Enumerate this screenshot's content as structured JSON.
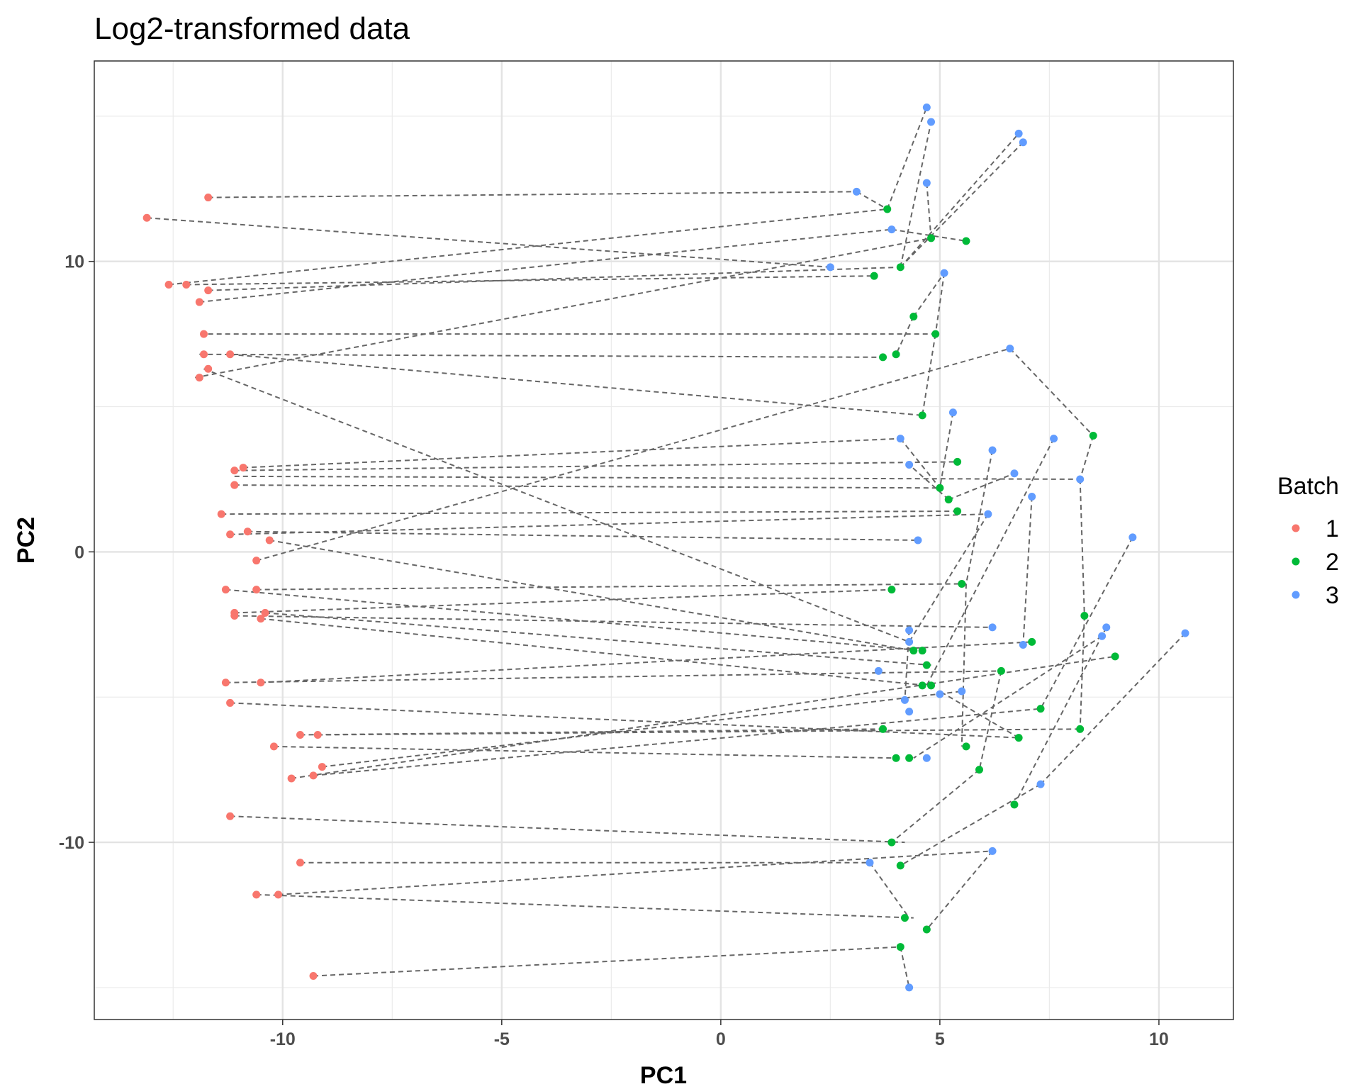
{
  "chart_data": {
    "type": "scatter",
    "title": "Log2-transformed data",
    "xlabel": "PC1",
    "ylabel": "PC2",
    "xlim": [
      -14.3,
      11.7
    ],
    "ylim": [
      -16.1,
      16.9
    ],
    "x_ticks": [
      -10,
      -5,
      0,
      5,
      10
    ],
    "y_ticks": [
      -10,
      0,
      10
    ],
    "x_tick_labels": [
      "-10",
      "-5",
      "0",
      "5",
      "10"
    ],
    "y_tick_labels": [
      "-10",
      "0",
      "10"
    ],
    "grid": true,
    "legend": {
      "title": "Batch",
      "position": "right",
      "entries": [
        "1",
        "2",
        "3"
      ]
    },
    "colors": {
      "1": "#f8766d",
      "2": "#00ba38",
      "3": "#619cff"
    },
    "line_style": "dashed",
    "line_color": "#666666",
    "series": [
      {
        "name": "1",
        "x": [
          -13.1,
          -11.7,
          -12.6,
          -12.2,
          -11.7,
          -11.9,
          -11.8,
          -11.8,
          -11.2,
          -11.7,
          -11.9,
          -11.1,
          -10.9,
          -11.1,
          -11.1,
          -11.4,
          -11.2,
          -10.8,
          -10.3,
          -10.6,
          -11.3,
          -10.6,
          -11.1,
          -11.1,
          -10.4,
          -10.5,
          -11.3,
          -10.5,
          -11.2,
          -10.2,
          -9.6,
          -9.2,
          -9.1,
          -9.3,
          -9.8,
          -11.2,
          -9.6,
          -10.6,
          -10.1,
          -9.3
        ],
        "y": [
          11.5,
          12.2,
          9.2,
          9.2,
          9.0,
          8.6,
          7.5,
          6.8,
          6.8,
          6.3,
          6.0,
          2.8,
          2.9,
          2.3,
          2.3,
          1.3,
          0.6,
          0.7,
          0.4,
          -0.3,
          -1.3,
          -1.3,
          -2.1,
          -2.2,
          -2.1,
          -2.3,
          -4.5,
          -4.5,
          -5.2,
          -6.7,
          -6.3,
          -6.3,
          -7.4,
          -7.7,
          -7.8,
          -9.1,
          -10.7,
          -11.8,
          -11.8,
          -14.6
        ]
      },
      {
        "name": "2",
        "x": [
          3.8,
          4.8,
          5.6,
          4.1,
          3.5,
          4.4,
          4.9,
          3.7,
          4.0,
          4.6,
          8.5,
          5.4,
          5.0,
          5.2,
          5.4,
          5.5,
          3.9,
          8.3,
          7.1,
          9.0,
          4.6,
          4.4,
          4.7,
          4.8,
          6.4,
          4.6,
          7.3,
          3.7,
          6.8,
          8.2,
          5.6,
          4.0,
          4.3,
          5.9,
          6.7,
          3.9,
          4.1,
          4.2,
          4.7,
          4.1
        ],
        "y": [
          11.8,
          10.8,
          10.7,
          9.8,
          9.5,
          8.1,
          7.5,
          6.7,
          6.8,
          4.7,
          4.0,
          3.1,
          2.2,
          1.8,
          1.4,
          -1.1,
          -1.3,
          -2.2,
          -3.1,
          -3.6,
          -3.4,
          -3.4,
          -3.9,
          -4.6,
          -4.1,
          -4.6,
          -5.4,
          -6.1,
          -6.4,
          -6.1,
          -6.7,
          -7.1,
          -7.1,
          -7.5,
          -8.7,
          -10.0,
          -10.8,
          -12.6,
          -13.0,
          -13.6
        ]
      },
      {
        "name": "3",
        "x": [
          4.7,
          4.8,
          6.8,
          6.9,
          4.7,
          3.1,
          3.9,
          2.5,
          5.1,
          6.6,
          5.3,
          4.1,
          7.6,
          6.2,
          4.3,
          6.7,
          8.2,
          7.1,
          6.1,
          9.4,
          4.5,
          6.2,
          8.8,
          4.3,
          8.7,
          6.9,
          4.3,
          3.6,
          5.0,
          5.5,
          4.2,
          4.3,
          4.7,
          7.3,
          10.6,
          6.2,
          3.4,
          4.3
        ],
        "y": [
          15.3,
          14.8,
          14.4,
          14.1,
          12.7,
          12.4,
          11.1,
          9.8,
          9.6,
          7.0,
          4.8,
          3.9,
          3.9,
          3.5,
          3.0,
          2.7,
          2.5,
          1.9,
          1.3,
          0.5,
          0.4,
          -2.6,
          -2.6,
          -2.7,
          -2.9,
          -3.2,
          -3.1,
          -4.1,
          -4.9,
          -4.8,
          -5.1,
          -5.5,
          -7.1,
          -8.0,
          -2.8,
          -10.3,
          -10.7,
          -15.0
        ]
      }
    ],
    "connections": [
      [
        [
          -11.7,
          12.2
        ],
        [
          3.1,
          12.4
        ]
      ],
      [
        [
          -13.1,
          11.5
        ],
        [
          2.5,
          9.8
        ]
      ],
      [
        [
          -12.6,
          9.2
        ],
        [
          3.8,
          11.8
        ]
      ],
      [
        [
          -12.2,
          9.2
        ],
        [
          3.5,
          9.5
        ]
      ],
      [
        [
          -11.7,
          9.0
        ],
        [
          4.1,
          9.8
        ]
      ],
      [
        [
          -11.9,
          8.6
        ],
        [
          3.9,
          11.1
        ]
      ],
      [
        [
          -11.7,
          7.5
        ],
        [
          4.9,
          7.5
        ]
      ],
      [
        [
          -11.9,
          6.8
        ],
        [
          3.7,
          6.7
        ]
      ],
      [
        [
          -11.2,
          6.8
        ],
        [
          4.6,
          4.7
        ]
      ],
      [
        [
          -11.8,
          6.3
        ],
        [
          4.3,
          -3.1
        ]
      ],
      [
        [
          -12.0,
          6.0
        ],
        [
          4.8,
          10.8
        ]
      ],
      [
        [
          -11.1,
          2.8
        ],
        [
          5.4,
          3.1
        ]
      ],
      [
        [
          -10.9,
          2.9
        ],
        [
          4.1,
          3.9
        ]
      ],
      [
        [
          -11.1,
          2.3
        ],
        [
          5.0,
          2.2
        ]
      ],
      [
        [
          -11.1,
          2.6
        ],
        [
          8.2,
          2.5
        ]
      ],
      [
        [
          -11.4,
          1.3
        ],
        [
          5.4,
          1.4
        ]
      ],
      [
        [
          -11.2,
          0.6
        ],
        [
          6.1,
          1.3
        ]
      ],
      [
        [
          -10.8,
          0.7
        ],
        [
          4.5,
          0.4
        ]
      ],
      [
        [
          -10.3,
          0.4
        ],
        [
          4.4,
          -3.4
        ]
      ],
      [
        [
          -10.6,
          -0.3
        ],
        [
          6.6,
          7.0
        ]
      ],
      [
        [
          -11.3,
          -1.3
        ],
        [
          4.6,
          -3.4
        ]
      ],
      [
        [
          -10.6,
          -1.3
        ],
        [
          5.6,
          -1.1
        ]
      ],
      [
        [
          -11.1,
          -2.1
        ],
        [
          3.9,
          -1.3
        ]
      ],
      [
        [
          -11.1,
          -2.2
        ],
        [
          6.2,
          -2.6
        ]
      ],
      [
        [
          -10.4,
          -2.1
        ],
        [
          4.8,
          -3.9
        ]
      ],
      [
        [
          -10.5,
          -2.3
        ],
        [
          4.7,
          -4.6
        ]
      ],
      [
        [
          -11.3,
          -4.5
        ],
        [
          6.4,
          -4.1
        ]
      ],
      [
        [
          -10.5,
          -4.5
        ],
        [
          7.1,
          -3.1
        ]
      ],
      [
        [
          -11.2,
          -5.2
        ],
        [
          6.8,
          -6.4
        ]
      ],
      [
        [
          -9.6,
          -6.3
        ],
        [
          3.7,
          -6.1
        ]
      ],
      [
        [
          -9.2,
          -6.3
        ],
        [
          8.2,
          -6.1
        ]
      ],
      [
        [
          -10.2,
          -6.7
        ],
        [
          4.0,
          -7.1
        ]
      ],
      [
        [
          -9.1,
          -7.4
        ],
        [
          5.5,
          -4.8
        ]
      ],
      [
        [
          -9.3,
          -7.7
        ],
        [
          7.3,
          -5.4
        ]
      ],
      [
        [
          -9.8,
          -7.8
        ],
        [
          9.0,
          -3.6
        ]
      ],
      [
        [
          -11.2,
          -9.1
        ],
        [
          4.2,
          -10.0
        ]
      ],
      [
        [
          -9.6,
          -10.7
        ],
        [
          3.4,
          -10.7
        ]
      ],
      [
        [
          -10.6,
          -11.8
        ],
        [
          4.4,
          -12.6
        ]
      ],
      [
        [
          -10.1,
          -11.8
        ],
        [
          6.2,
          -10.3
        ]
      ],
      [
        [
          -9.3,
          -14.6
        ],
        [
          4.1,
          -13.6
        ]
      ],
      [
        [
          3.1,
          12.4
        ],
        [
          3.8,
          11.8
        ]
      ],
      [
        [
          3.8,
          11.8
        ],
        [
          4.7,
          15.3
        ]
      ],
      [
        [
          4.1,
          9.8
        ],
        [
          4.8,
          14.8
        ]
      ],
      [
        [
          4.1,
          9.8
        ],
        [
          6.8,
          14.4
        ]
      ],
      [
        [
          4.1,
          9.8
        ],
        [
          6.9,
          14.1
        ]
      ],
      [
        [
          4.7,
          12.7
        ],
        [
          4.8,
          10.8
        ]
      ],
      [
        [
          3.9,
          11.1
        ],
        [
          5.6,
          10.7
        ]
      ],
      [
        [
          4.4,
          8.1
        ],
        [
          5.1,
          9.6
        ]
      ],
      [
        [
          4.4,
          8.1
        ],
        [
          4.0,
          6.8
        ]
      ],
      [
        [
          5.1,
          9.6
        ],
        [
          4.9,
          7.5
        ]
      ],
      [
        [
          4.9,
          7.5
        ],
        [
          4.6,
          4.7
        ]
      ],
      [
        [
          6.6,
          7.0
        ],
        [
          8.5,
          4.0
        ]
      ],
      [
        [
          8.5,
          4.0
        ],
        [
          8.2,
          2.5
        ]
      ],
      [
        [
          8.2,
          2.5
        ],
        [
          8.3,
          -2.2
        ]
      ],
      [
        [
          8.3,
          -2.2
        ],
        [
          8.2,
          -6.1
        ]
      ],
      [
        [
          5.3,
          4.8
        ],
        [
          5.0,
          2.2
        ]
      ],
      [
        [
          4.1,
          3.9
        ],
        [
          5.0,
          2.2
        ]
      ],
      [
        [
          5.2,
          1.8
        ],
        [
          4.3,
          3.0
        ]
      ],
      [
        [
          5.2,
          1.8
        ],
        [
          6.7,
          2.7
        ]
      ],
      [
        [
          6.2,
          3.5
        ],
        [
          5.6,
          -1.1
        ]
      ],
      [
        [
          7.6,
          3.9
        ],
        [
          4.7,
          -4.6
        ]
      ],
      [
        [
          7.1,
          1.9
        ],
        [
          6.9,
          -3.2
        ]
      ],
      [
        [
          6.1,
          1.3
        ],
        [
          4.3,
          -3.1
        ]
      ],
      [
        [
          9.4,
          0.5
        ],
        [
          7.3,
          -5.4
        ]
      ],
      [
        [
          8.8,
          -2.6
        ],
        [
          8.7,
          -2.9
        ]
      ],
      [
        [
          8.8,
          -2.6
        ],
        [
          6.7,
          -8.7
        ]
      ],
      [
        [
          8.7,
          -2.9
        ],
        [
          4.4,
          -7.1
        ]
      ],
      [
        [
          5.6,
          -1.1
        ],
        [
          5.5,
          -6.7
        ]
      ],
      [
        [
          10.6,
          -2.8
        ],
        [
          7.3,
          -8.0
        ]
      ],
      [
        [
          7.3,
          -8.0
        ],
        [
          4.1,
          -10.8
        ]
      ],
      [
        [
          6.8,
          -6.4
        ],
        [
          5.0,
          -4.8
        ]
      ],
      [
        [
          6.4,
          -4.1
        ],
        [
          5.9,
          -7.5
        ]
      ],
      [
        [
          5.9,
          -7.5
        ],
        [
          3.9,
          -10.0
        ]
      ],
      [
        [
          4.3,
          -2.7
        ],
        [
          4.2,
          -5.1
        ]
      ],
      [
        [
          6.2,
          -10.3
        ],
        [
          4.7,
          -13.0
        ]
      ],
      [
        [
          3.4,
          -10.7
        ],
        [
          4.3,
          -12.6
        ]
      ],
      [
        [
          4.1,
          -13.6
        ],
        [
          4.3,
          -15.0
        ]
      ]
    ]
  }
}
